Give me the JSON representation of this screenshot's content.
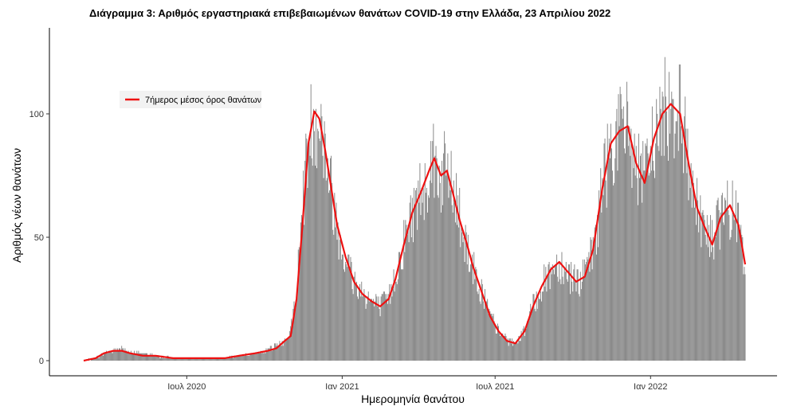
{
  "chart_data": {
    "type": "bar",
    "title": "Διάγραμμα 3: Αριθμός εργαστηριακά επιβεβαιωμένων θανάτων COVID-19 στην Ελλάδα, 23 Απριλίου 2022",
    "xlabel": "Ημερομηνία θανάτου",
    "ylabel": "Αριθμός νέων θανάτων",
    "x_range": [
      "2020-03-01",
      "2022-04-23"
    ],
    "ylim": [
      0,
      130
    ],
    "y_ticks": [
      0,
      50,
      100
    ],
    "x_ticks": [
      {
        "date": "2020-07-01",
        "label": "Ιουλ 2020"
      },
      {
        "date": "2021-01-01",
        "label": "Ιαν 2021"
      },
      {
        "date": "2021-07-01",
        "label": "Ιουλ 2021"
      },
      {
        "date": "2022-01-01",
        "label": "Ιαν 2022"
      }
    ],
    "grid": false,
    "legend": {
      "position": "top-left",
      "entries": [
        "7ήμερος μέσος όρος θανάτων"
      ]
    },
    "colors": {
      "bars": "#7f7f7f",
      "line": "#ee1111"
    },
    "series": [
      {
        "name": "",
        "kind": "daily_deaths_bars",
        "points": [
          [
            "2020-03-01",
            0
          ],
          [
            "2020-03-15",
            1
          ],
          [
            "2020-03-25",
            3
          ],
          [
            "2020-04-05",
            4
          ],
          [
            "2020-04-15",
            5
          ],
          [
            "2020-04-25",
            3
          ],
          [
            "2020-05-10",
            3
          ],
          [
            "2020-05-25",
            2
          ],
          [
            "2020-06-15",
            1
          ],
          [
            "2020-07-15",
            1
          ],
          [
            "2020-08-15",
            1
          ],
          [
            "2020-09-01",
            2
          ],
          [
            "2020-09-20",
            3
          ],
          [
            "2020-10-05",
            4
          ],
          [
            "2020-10-15",
            6
          ],
          [
            "2020-10-25",
            8
          ],
          [
            "2020-11-01",
            12
          ],
          [
            "2020-11-08",
            30
          ],
          [
            "2020-11-15",
            60
          ],
          [
            "2020-11-22",
            90
          ],
          [
            "2020-11-29",
            100
          ],
          [
            "2020-12-05",
            98
          ],
          [
            "2020-12-12",
            85
          ],
          [
            "2020-12-19",
            70
          ],
          [
            "2020-12-26",
            55
          ],
          [
            "2021-01-05",
            42
          ],
          [
            "2021-01-15",
            32
          ],
          [
            "2021-01-25",
            28
          ],
          [
            "2021-02-05",
            24
          ],
          [
            "2021-02-15",
            22
          ],
          [
            "2021-02-25",
            25
          ],
          [
            "2021-03-05",
            35
          ],
          [
            "2021-03-15",
            48
          ],
          [
            "2021-03-25",
            60
          ],
          [
            "2021-04-05",
            70
          ],
          [
            "2021-04-15",
            78
          ],
          [
            "2021-04-20",
            80
          ],
          [
            "2021-04-28",
            75
          ],
          [
            "2021-05-05",
            77
          ],
          [
            "2021-05-12",
            68
          ],
          [
            "2021-05-20",
            58
          ],
          [
            "2021-05-28",
            48
          ],
          [
            "2021-06-05",
            38
          ],
          [
            "2021-06-15",
            28
          ],
          [
            "2021-06-25",
            18
          ],
          [
            "2021-07-05",
            12
          ],
          [
            "2021-07-15",
            8
          ],
          [
            "2021-07-25",
            7
          ],
          [
            "2021-08-05",
            12
          ],
          [
            "2021-08-15",
            22
          ],
          [
            "2021-08-25",
            30
          ],
          [
            "2021-09-05",
            37
          ],
          [
            "2021-09-15",
            40
          ],
          [
            "2021-09-25",
            36
          ],
          [
            "2021-10-05",
            32
          ],
          [
            "2021-10-15",
            34
          ],
          [
            "2021-10-25",
            45
          ],
          [
            "2021-11-05",
            70
          ],
          [
            "2021-11-15",
            88
          ],
          [
            "2021-11-25",
            93
          ],
          [
            "2021-12-05",
            95
          ],
          [
            "2021-12-15",
            80
          ],
          [
            "2021-12-25",
            72
          ],
          [
            "2022-01-05",
            90
          ],
          [
            "2022-01-15",
            100
          ],
          [
            "2022-01-25",
            104
          ],
          [
            "2022-02-05",
            100
          ],
          [
            "2022-02-15",
            80
          ],
          [
            "2022-02-25",
            62
          ],
          [
            "2022-03-05",
            55
          ],
          [
            "2022-03-15",
            48
          ],
          [
            "2022-03-25",
            58
          ],
          [
            "2022-04-05",
            62
          ],
          [
            "2022-04-15",
            55
          ],
          [
            "2022-04-23",
            35
          ]
        ]
      },
      {
        "name": "7ήμερος μέσος όρος θανάτων",
        "kind": "line",
        "points": [
          [
            "2020-03-01",
            0
          ],
          [
            "2020-03-15",
            1
          ],
          [
            "2020-03-25",
            3
          ],
          [
            "2020-04-05",
            4
          ],
          [
            "2020-04-15",
            4
          ],
          [
            "2020-04-25",
            3
          ],
          [
            "2020-05-10",
            2
          ],
          [
            "2020-05-25",
            2
          ],
          [
            "2020-06-15",
            1
          ],
          [
            "2020-07-15",
            1
          ],
          [
            "2020-08-15",
            1
          ],
          [
            "2020-09-01",
            2
          ],
          [
            "2020-09-20",
            3
          ],
          [
            "2020-10-05",
            4
          ],
          [
            "2020-10-15",
            5
          ],
          [
            "2020-10-25",
            8
          ],
          [
            "2020-11-01",
            10
          ],
          [
            "2020-11-08",
            25
          ],
          [
            "2020-11-15",
            55
          ],
          [
            "2020-11-22",
            88
          ],
          [
            "2020-11-29",
            101
          ],
          [
            "2020-12-05",
            98
          ],
          [
            "2020-12-12",
            85
          ],
          [
            "2020-12-19",
            70
          ],
          [
            "2020-12-26",
            55
          ],
          [
            "2021-01-05",
            42
          ],
          [
            "2021-01-15",
            32
          ],
          [
            "2021-01-25",
            27
          ],
          [
            "2021-02-05",
            24
          ],
          [
            "2021-02-15",
            22
          ],
          [
            "2021-02-25",
            25
          ],
          [
            "2021-03-05",
            33
          ],
          [
            "2021-03-15",
            47
          ],
          [
            "2021-03-25",
            60
          ],
          [
            "2021-04-05",
            69
          ],
          [
            "2021-04-15",
            78
          ],
          [
            "2021-04-20",
            82
          ],
          [
            "2021-04-28",
            75
          ],
          [
            "2021-05-05",
            77
          ],
          [
            "2021-05-12",
            68
          ],
          [
            "2021-05-20",
            57
          ],
          [
            "2021-05-28",
            48
          ],
          [
            "2021-06-05",
            38
          ],
          [
            "2021-06-15",
            28
          ],
          [
            "2021-06-25",
            18
          ],
          [
            "2021-07-05",
            12
          ],
          [
            "2021-07-15",
            8
          ],
          [
            "2021-07-25",
            7
          ],
          [
            "2021-08-05",
            12
          ],
          [
            "2021-08-15",
            22
          ],
          [
            "2021-08-25",
            30
          ],
          [
            "2021-09-05",
            37
          ],
          [
            "2021-09-15",
            40
          ],
          [
            "2021-09-25",
            36
          ],
          [
            "2021-10-05",
            32
          ],
          [
            "2021-10-15",
            34
          ],
          [
            "2021-10-25",
            45
          ],
          [
            "2021-11-05",
            70
          ],
          [
            "2021-11-15",
            88
          ],
          [
            "2021-11-25",
            93
          ],
          [
            "2021-12-05",
            95
          ],
          [
            "2021-12-15",
            80
          ],
          [
            "2021-12-25",
            72
          ],
          [
            "2022-01-05",
            90
          ],
          [
            "2022-01-15",
            100
          ],
          [
            "2022-01-25",
            104
          ],
          [
            "2022-02-05",
            100
          ],
          [
            "2022-02-15",
            80
          ],
          [
            "2022-02-25",
            62
          ],
          [
            "2022-03-05",
            55
          ],
          [
            "2022-03-15",
            47
          ],
          [
            "2022-03-25",
            58
          ],
          [
            "2022-04-05",
            63
          ],
          [
            "2022-04-15",
            55
          ],
          [
            "2022-04-23",
            39
          ]
        ]
      }
    ]
  }
}
